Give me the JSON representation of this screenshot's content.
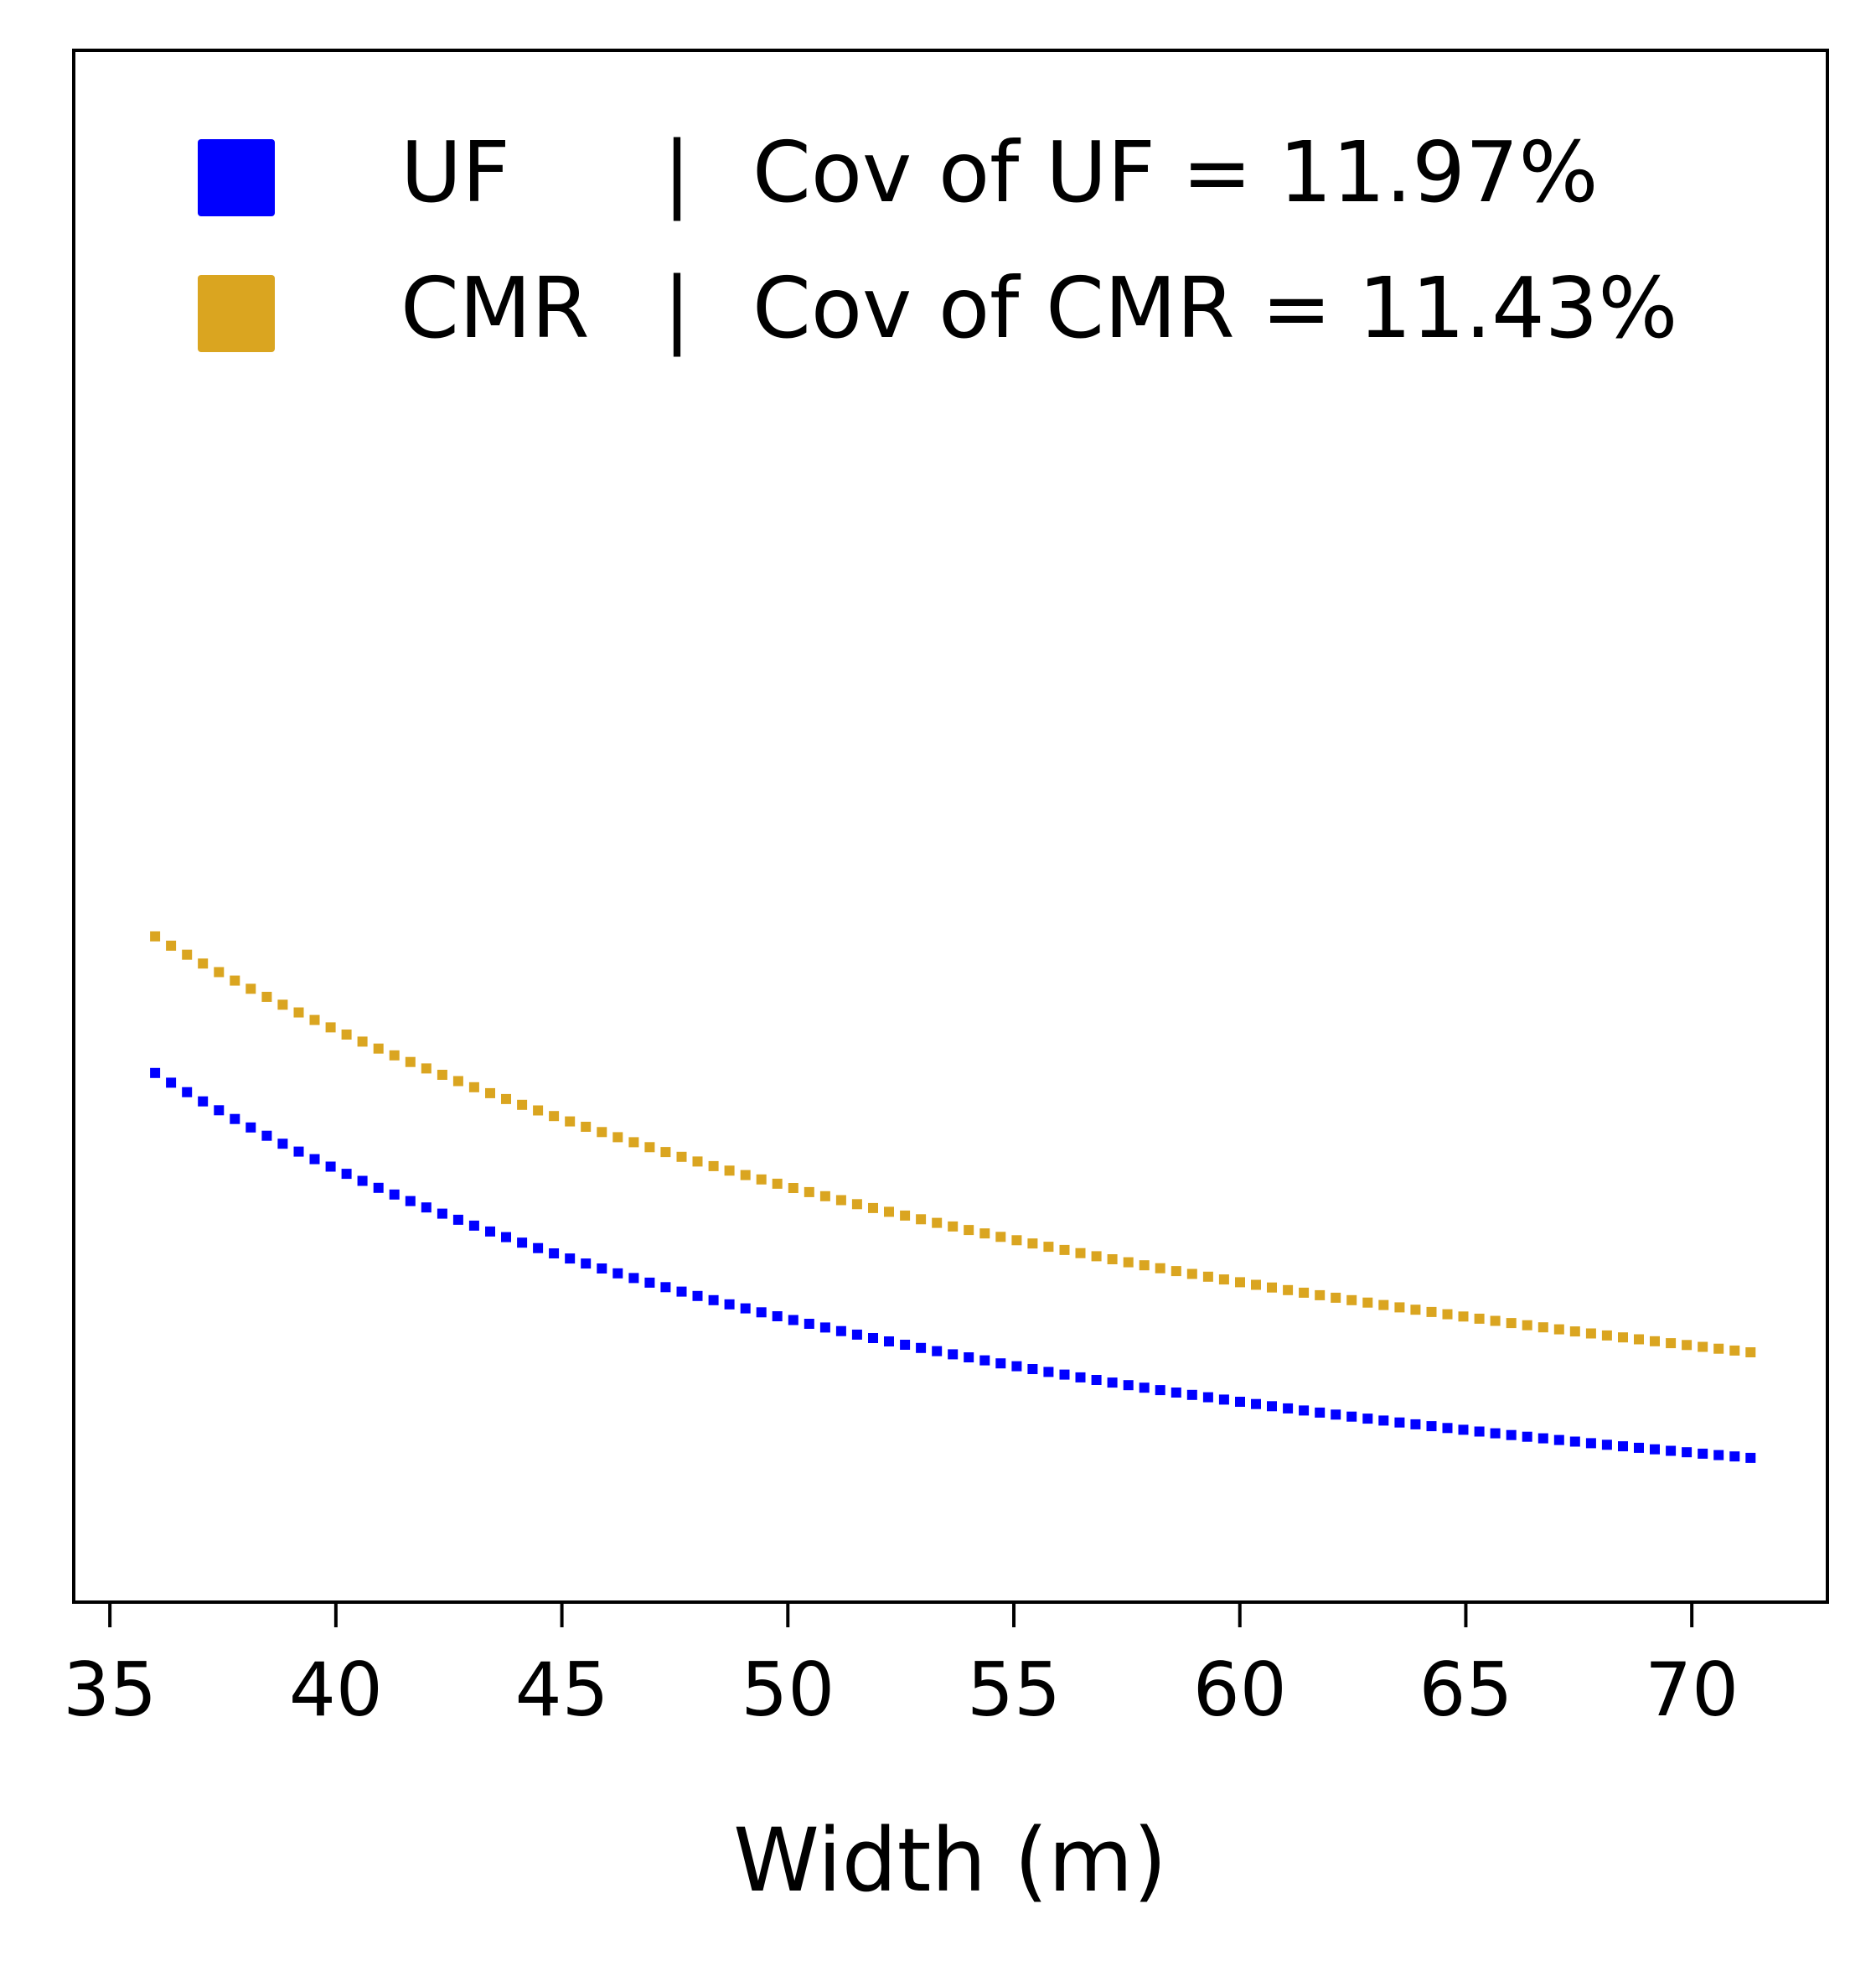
{
  "chart_data": {
    "type": "scatter",
    "title": "",
    "xlabel": "Width (m)",
    "ylabel": "",
    "xlim": [
      34.2,
      73.0
    ],
    "ylim": [
      0.0,
      1.0
    ],
    "y_ticks_visible": false,
    "xticks": [
      35,
      40,
      45,
      50,
      55,
      60,
      65,
      70
    ],
    "xtick_labels": [
      "35",
      "40",
      "45",
      "50",
      "55",
      "60",
      "65",
      "70"
    ],
    "grid": false,
    "legend_position": "top-left",
    "legend": [
      {
        "name": "UF",
        "separator": "|",
        "note": "Cov of UF = 11.97%",
        "color": "#0000ff"
      },
      {
        "name": "CMR",
        "separator": "|",
        "note": "Cov of CMR = 11.43%",
        "color": "#daa520"
      }
    ],
    "series": [
      {
        "name": "UF",
        "color": "#0000ff",
        "x_start": 36.0,
        "x_end": 71.3,
        "num_points": 101,
        "y_start": 0.341,
        "y_end": 0.093
      },
      {
        "name": "CMR",
        "color": "#daa520",
        "x_start": 36.0,
        "x_end": 71.3,
        "num_points": 101,
        "y_start": 0.429,
        "y_end": 0.161
      }
    ]
  }
}
